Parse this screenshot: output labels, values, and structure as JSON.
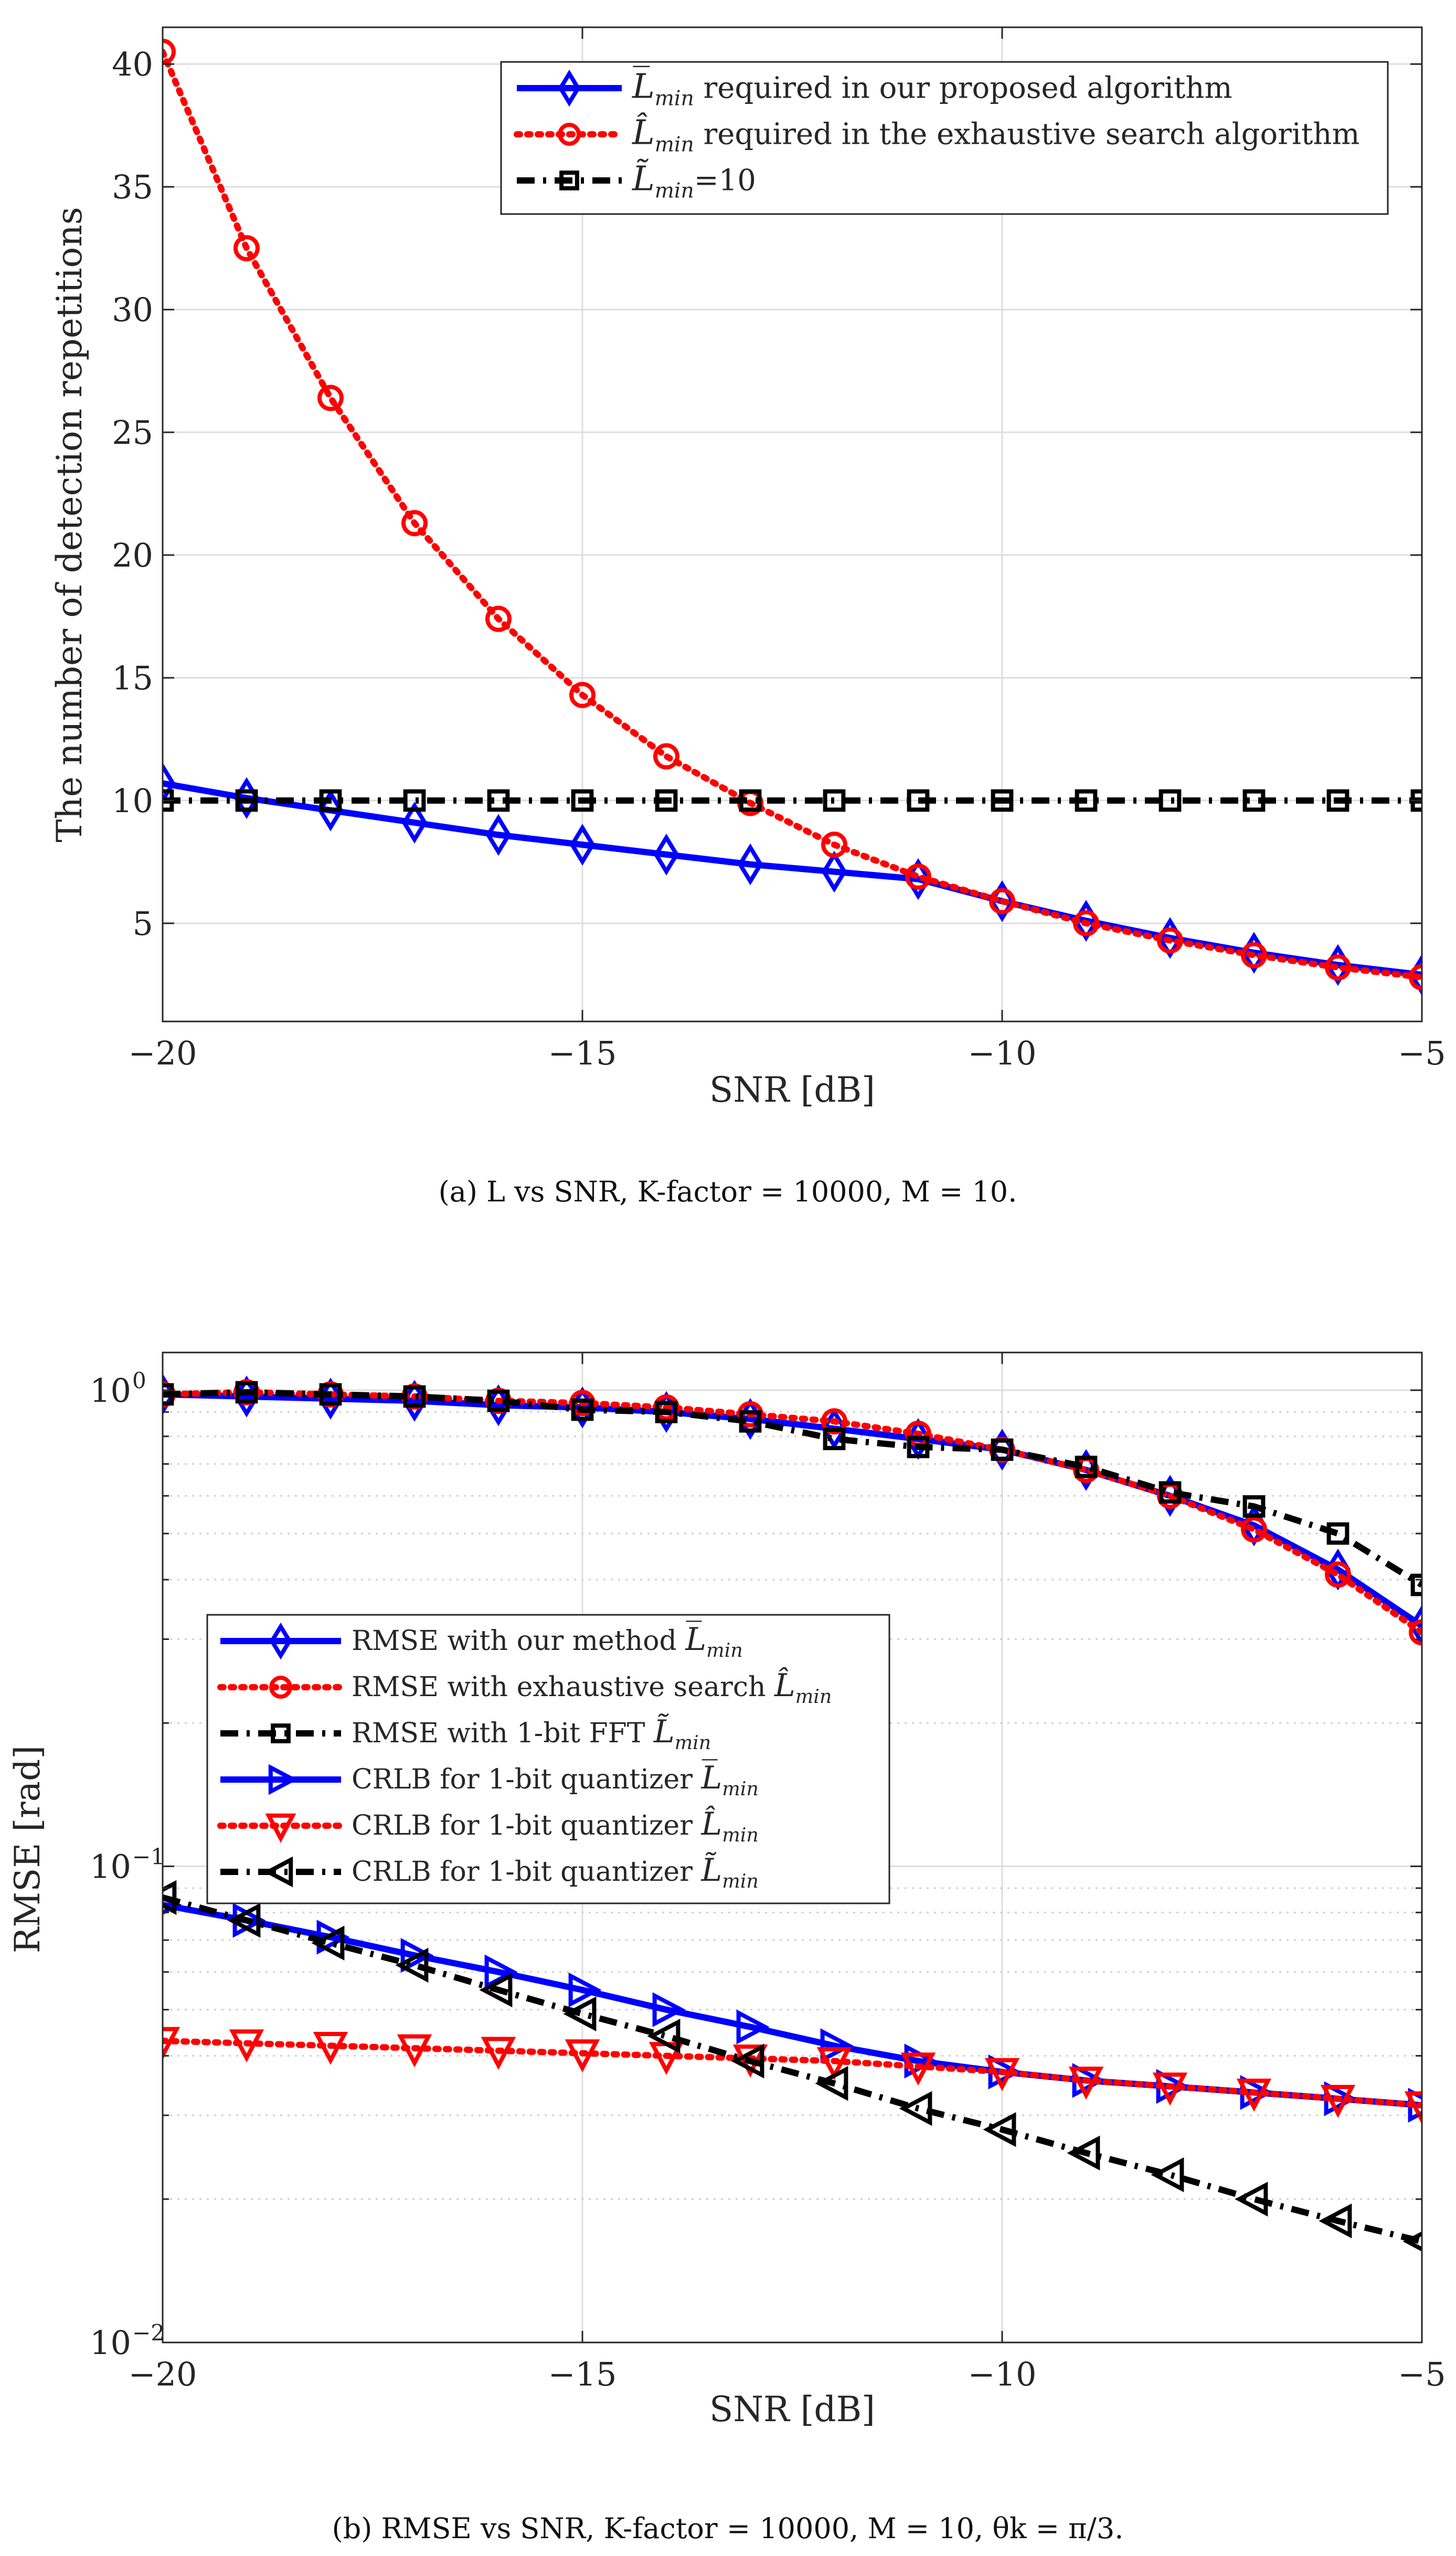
{
  "chart_data": [
    {
      "type": "line",
      "title": "",
      "xlabel": "SNR [dB]",
      "ylabel": "The number of detection repetitions",
      "xlim": [
        -20,
        -5
      ],
      "ylim": [
        1,
        41.5
      ],
      "yscale": "linear",
      "grid": true,
      "legend_position": "top-right",
      "x_ticks": [
        -20,
        -15,
        -10,
        -5
      ],
      "x_tick_labels": [
        "−20",
        "−15",
        "−10",
        "−5"
      ],
      "y_ticks": [
        5,
        10,
        15,
        20,
        25,
        30,
        35,
        40
      ],
      "y_tick_labels": [
        "5",
        "10",
        "15",
        "20",
        "25",
        "30",
        "35",
        "40"
      ],
      "x": [
        -20,
        -19,
        -18,
        -17,
        -16,
        -15,
        -14,
        -13,
        -12,
        -11,
        -10,
        -9,
        -8,
        -7,
        -6,
        -5
      ],
      "series": [
        {
          "name": "L̅min required in our proposed algorithm",
          "symbol": "L̅",
          "subscript": "min",
          "suffix": " required in our proposed algorithm",
          "color": "#0000ff",
          "marker": "diamond",
          "line_style": "solid",
          "values": [
            10.7,
            10.1,
            9.6,
            9.1,
            8.6,
            8.2,
            7.8,
            7.4,
            7.1,
            6.8,
            5.9,
            5.1,
            4.4,
            3.8,
            3.3,
            2.9
          ]
        },
        {
          "name": "L̂min required in the exhaustive search algorithm",
          "symbol": "L̂",
          "subscript": "min",
          "suffix": " required in the exhaustive search algorithm",
          "color": "#ff0000",
          "marker": "circle",
          "line_style": "dotted",
          "values": [
            40.5,
            32.5,
            26.4,
            21.3,
            17.4,
            14.3,
            11.8,
            9.9,
            8.2,
            6.9,
            5.9,
            5.0,
            4.3,
            3.7,
            3.2,
            2.8
          ]
        },
        {
          "name": "L̃min=10",
          "symbol": "L̃",
          "subscript": "min",
          "suffix": "=10",
          "color": "#000000",
          "marker": "square",
          "line_style": "dashdot",
          "values": [
            10,
            10,
            10,
            10,
            10,
            10,
            10,
            10,
            10,
            10,
            10,
            10,
            10,
            10,
            10,
            10
          ]
        }
      ],
      "caption": "(a)  L vs SNR, K-factor = 10000, M = 10."
    },
    {
      "type": "line",
      "title": "",
      "xlabel": "SNR [dB]",
      "ylabel": "RMSE [rad]",
      "xlim": [
        -20,
        -5
      ],
      "ylim": [
        0.01,
        1.2
      ],
      "yscale": "log",
      "grid": true,
      "legend_position": "center-left",
      "x_ticks": [
        -20,
        -15,
        -10,
        -5
      ],
      "x_tick_labels": [
        "−20",
        "−15",
        "−10",
        "−5"
      ],
      "y_ticks": [
        0.01,
        0.1,
        1
      ],
      "y_tick_labels": [
        "10",
        "10",
        "10"
      ],
      "y_tick_exponents": [
        "−2",
        "−1",
        "0"
      ],
      "x": [
        -20,
        -19,
        -18,
        -17,
        -16,
        -15,
        -14,
        -13,
        -12,
        -11,
        -10,
        -9,
        -8,
        -7,
        -6,
        -5
      ],
      "series": [
        {
          "name": "RMSE with our method L̅min",
          "symbol": "L̅",
          "subscript": "min",
          "prefix": "RMSE with our method ",
          "color": "#0000ff",
          "marker": "diamond",
          "line_style": "solid",
          "values": [
            0.98,
            0.97,
            0.96,
            0.95,
            0.93,
            0.92,
            0.9,
            0.87,
            0.83,
            0.79,
            0.75,
            0.68,
            0.6,
            0.52,
            0.42,
            0.32
          ]
        },
        {
          "name": "RMSE with exhaustive search L̂min",
          "symbol": "L̂",
          "subscript": "min",
          "prefix": "RMSE with exhaustive search ",
          "color": "#ff0000",
          "marker": "circle",
          "line_style": "dotted",
          "values": [
            0.98,
            0.99,
            0.98,
            0.97,
            0.95,
            0.94,
            0.92,
            0.89,
            0.86,
            0.81,
            0.75,
            0.68,
            0.6,
            0.51,
            0.41,
            0.31
          ]
        },
        {
          "name": "RMSE with 1-bit FFT L̃min",
          "symbol": "L̃",
          "subscript": "min",
          "prefix": "RMSE with 1-bit FFT ",
          "color": "#000000",
          "marker": "square",
          "line_style": "dashdot",
          "values": [
            0.98,
            0.99,
            0.98,
            0.97,
            0.95,
            0.91,
            0.9,
            0.86,
            0.79,
            0.76,
            0.75,
            0.69,
            0.61,
            0.57,
            0.5,
            0.39
          ]
        },
        {
          "name": "CRLB for 1-bit quantizer L̅min",
          "symbol": "L̅",
          "subscript": "min",
          "prefix": "CRLB for 1-bit quantizer ",
          "color": "#0000ff",
          "marker": "triangle-right",
          "line_style": "solid",
          "values": [
            0.083,
            0.077,
            0.071,
            0.065,
            0.06,
            0.055,
            0.05,
            0.046,
            0.042,
            0.039,
            0.037,
            0.0355,
            0.0345,
            0.0335,
            0.0325,
            0.0315
          ]
        },
        {
          "name": "CRLB for 1-bit quantizer L̂min",
          "symbol": "L̂",
          "subscript": "min",
          "prefix": "CRLB for 1-bit quantizer ",
          "color": "#ff0000",
          "marker": "triangle-down",
          "line_style": "dotted",
          "values": [
            0.043,
            0.0425,
            0.042,
            0.0415,
            0.041,
            0.0405,
            0.04,
            0.0395,
            0.039,
            0.038,
            0.037,
            0.0355,
            0.0345,
            0.0335,
            0.0325,
            0.0315
          ]
        },
        {
          "name": "CRLB for 1-bit quantizer L̃min",
          "symbol": "L̃",
          "subscript": "min",
          "prefix": "CRLB for 1-bit quantizer ",
          "color": "#000000",
          "marker": "triangle-left",
          "line_style": "dashdot",
          "values": [
            0.086,
            0.077,
            0.069,
            0.062,
            0.055,
            0.049,
            0.044,
            0.039,
            0.035,
            0.031,
            0.028,
            0.025,
            0.0225,
            0.02,
            0.018,
            0.0163
          ]
        }
      ],
      "caption": "(b)  RMSE vs SNR, K-factor = 10000, M = 10, θk = π/3."
    }
  ]
}
